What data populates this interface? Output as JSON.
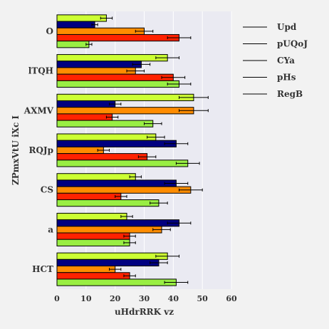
{
  "chart_data": {
    "type": "bar",
    "orientation": "horizontal",
    "categories": [
      "O",
      "lTQH",
      "AXMV",
      "RQJp",
      "CS",
      "a",
      "HCT"
    ],
    "series": [
      {
        "name": "Upd",
        "color": "#ccff33",
        "values": [
          17,
          38,
          47,
          34,
          27,
          24,
          38
        ],
        "errors": [
          2,
          4,
          5,
          3,
          2,
          2,
          4
        ]
      },
      {
        "name": "pUQoJ",
        "color": "#000080",
        "values": [
          13,
          29,
          20,
          41,
          41,
          42,
          35
        ],
        "errors": [
          1,
          3,
          2,
          4,
          4,
          4,
          3
        ]
      },
      {
        "name": "CYa",
        "color": "#ff8c00",
        "values": [
          30,
          27,
          47,
          16,
          46,
          36,
          20
        ],
        "errors": [
          3,
          3,
          5,
          2,
          4,
          3,
          2
        ]
      },
      {
        "name": "pHs",
        "color": "#ff2200",
        "values": [
          42,
          40,
          19,
          31,
          22,
          25,
          25
        ],
        "errors": [
          4,
          4,
          2,
          3,
          2,
          2,
          2
        ]
      },
      {
        "name": "RegB",
        "color": "#99ee44",
        "values": [
          11,
          42,
          33,
          45,
          35,
          25,
          41
        ],
        "errors": [
          1,
          4,
          3,
          4,
          3,
          2,
          4
        ]
      }
    ],
    "xlabel": "uHdrRRK vz",
    "ylabel": "ZPmxVtU iXc I",
    "xlim": [
      0,
      60
    ],
    "xticks": [
      0,
      10,
      20,
      30,
      40,
      50,
      60
    ],
    "grid": true,
    "legend_position": "right"
  }
}
